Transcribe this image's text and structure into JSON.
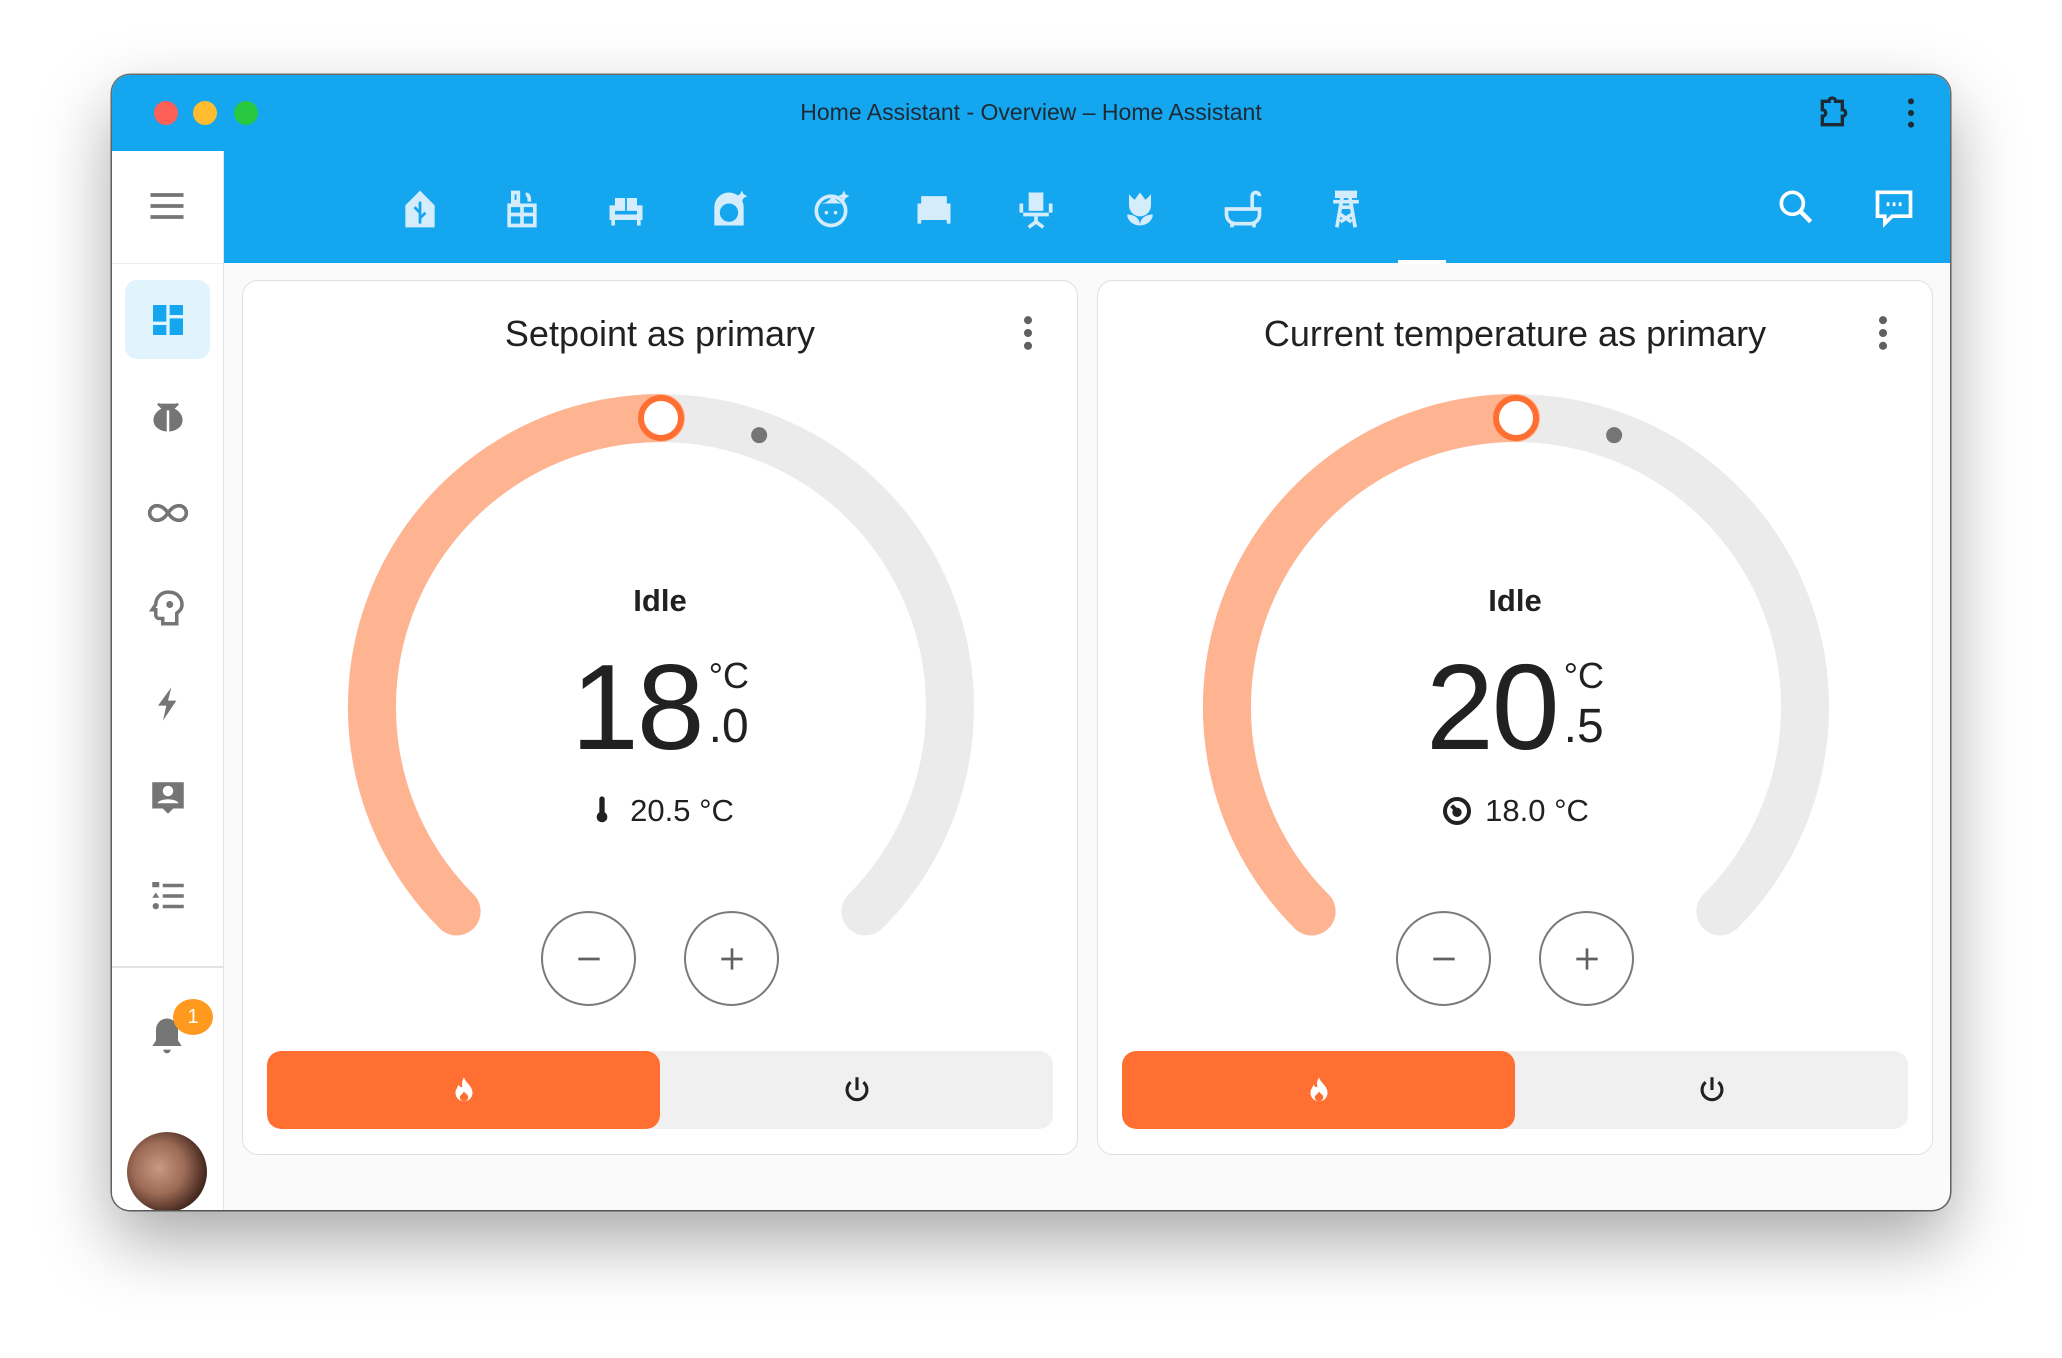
{
  "window": {
    "title": "Home Assistant - Overview – Home Assistant",
    "traffic_lights": [
      "#fe5f57",
      "#febc2e",
      "#28c840"
    ],
    "extension_icon": "puzzle-icon",
    "menu_icon": "dots-vertical-icon"
  },
  "header": {
    "menu_icon": "hamburger-icon",
    "tabs": [
      {
        "icon": "home-garden-icon"
      },
      {
        "icon": "desk-icon"
      },
      {
        "icon": "sofa-icon"
      },
      {
        "icon": "face-woman-shimmer-icon"
      },
      {
        "icon": "face-man-shimmer-icon"
      },
      {
        "icon": "bed-icon"
      },
      {
        "icon": "chair-icon"
      },
      {
        "icon": "flower-tulip-icon"
      },
      {
        "icon": "bathtub-icon"
      },
      {
        "icon": "transmission-tower-icon"
      }
    ],
    "actions": [
      "search-icon",
      "assist-icon",
      "dots-vertical-icon"
    ],
    "accent": "#14a6ef"
  },
  "sidebar": {
    "items": [
      {
        "icon": "dashboard-icon",
        "selected": true
      },
      {
        "icon": "bug-icon"
      },
      {
        "icon": "infinity-icon"
      },
      {
        "icon": "head-cog-icon"
      },
      {
        "icon": "lightning-icon"
      },
      {
        "icon": "account-box-icon"
      },
      {
        "icon": "format-list-icon"
      }
    ],
    "notifications": {
      "icon": "bell-icon",
      "badge": "1"
    },
    "avatar": "user-avatar"
  },
  "cards": [
    {
      "title": "Setpoint as primary",
      "action": "Idle",
      "main_integer": "18",
      "main_decimal": ".0",
      "unit": "°C",
      "secondary_icon": "thermometer-icon",
      "secondary": "20.5 °C",
      "setpoint": 18.0,
      "current": 20.5,
      "modes": [
        {
          "icon": "fire-icon",
          "active": true
        },
        {
          "icon": "power-icon",
          "active": false
        }
      ]
    },
    {
      "title": "Current temperature as primary",
      "action": "Idle",
      "main_integer": "20",
      "main_decimal": ".5",
      "unit": "°C",
      "secondary_icon": "thermostat-target-icon",
      "secondary": "18.0 °C",
      "setpoint": 18.0,
      "current": 20.5,
      "modes": [
        {
          "icon": "fire-icon",
          "active": true
        },
        {
          "icon": "power-icon",
          "active": false
        }
      ]
    }
  ],
  "colors": {
    "heat": "#ff6f32",
    "heat_light": "#ffb491",
    "track": "#ebebeb"
  }
}
